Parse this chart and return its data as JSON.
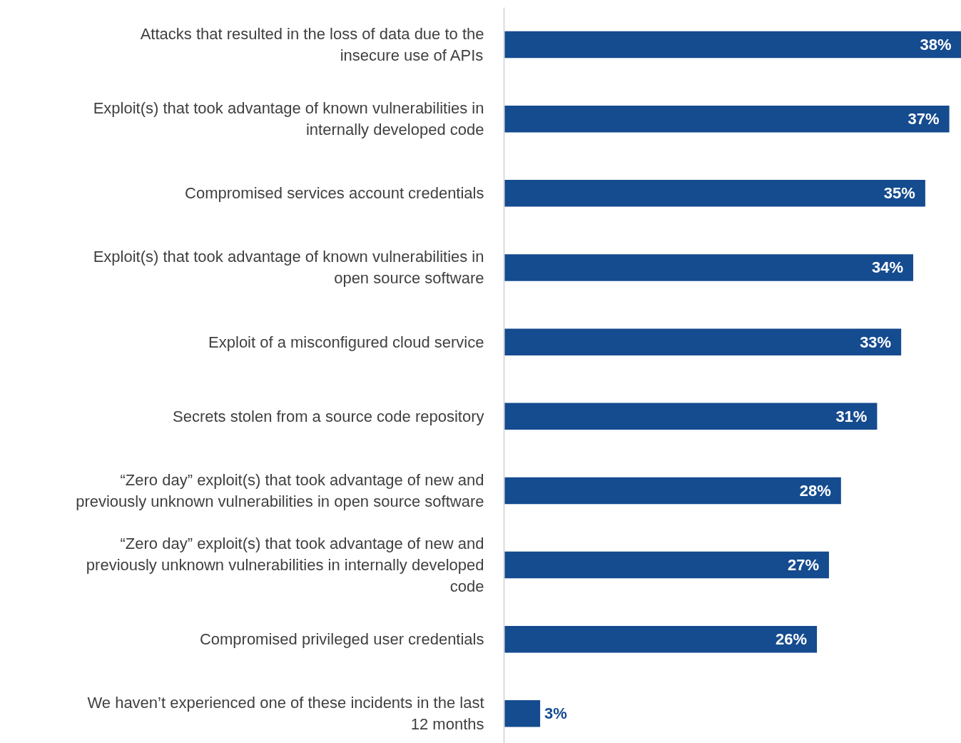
{
  "chart_data": {
    "type": "bar",
    "orientation": "horizontal",
    "categories": [
      "Attacks that resulted in the loss of data due to the insecure use of APIs",
      "Exploit(s) that took advantage of known vulnerabilities in internally developed code",
      "Compromised services account credentials",
      "Exploit(s) that took advantage of known vulnerabilities in open source software",
      "Exploit of a misconfigured cloud service",
      "Secrets stolen from a source code repository",
      "“Zero day” exploit(s) that took advantage of new and previously unknown vulnerabilities in open source software",
      "“Zero day” exploit(s) that took advantage of new and previously unknown vulnerabilities in internally developed code",
      "Compromised privileged user credentials",
      "We haven’t experienced one of these incidents in the last 12 months"
    ],
    "values": [
      38,
      37,
      35,
      34,
      33,
      31,
      28,
      27,
      26,
      3
    ],
    "value_labels": [
      "38%",
      "37%",
      "35%",
      "34%",
      "33%",
      "31%",
      "28%",
      "27%",
      "26%",
      "3%"
    ],
    "color": "#154b8f",
    "xlim": [
      0,
      38
    ],
    "grid": false
  }
}
